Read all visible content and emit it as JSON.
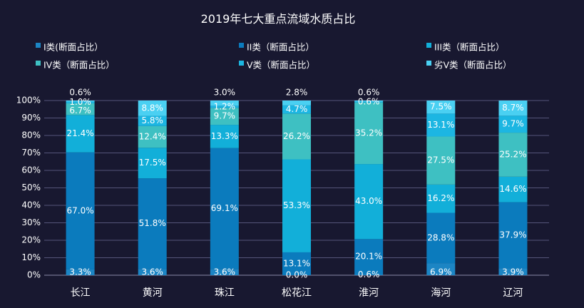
{
  "chart_data": {
    "type": "bar",
    "stacked": true,
    "title": "2019年七大重点流域水质占比",
    "xlabel": "",
    "ylabel": "",
    "ylim": [
      0,
      100
    ],
    "y_ticks": [
      "0%",
      "10%",
      "20%",
      "30%",
      "40%",
      "50%",
      "60%",
      "70%",
      "80%",
      "90%",
      "100%"
    ],
    "legend_position": "top",
    "categories": [
      "长江",
      "黄河",
      "珠江",
      "松花江",
      "淮河",
      "海河",
      "辽河"
    ],
    "series": [
      {
        "name": "I类(断面占比）",
        "color": "#1c85c4",
        "values": [
          3.3,
          3.6,
          3.6,
          0.0,
          0.6,
          6.9,
          3.9
        ],
        "labels": [
          "3.3%",
          "3.6%",
          "3.6%",
          "0.0%",
          "0.6%",
          "6.9%",
          "3.9%"
        ]
      },
      {
        "name": "II类（断面占比）",
        "color": "#0b7bbd",
        "values": [
          67.0,
          51.8,
          69.1,
          13.1,
          20.1,
          28.8,
          37.9
        ],
        "labels": [
          "67.0%",
          "51.8%",
          "69.1%",
          "13.1%",
          "20.1%",
          "28.8%",
          "37.9%"
        ]
      },
      {
        "name": "III类（断面占比）",
        "color": "#12afd9",
        "values": [
          21.4,
          17.5,
          13.3,
          53.3,
          43.0,
          16.2,
          14.6
        ],
        "labels": [
          "21.4%",
          "17.5%",
          "13.3%",
          "53.3%",
          "43.0%",
          "16.2%",
          "14.6%"
        ]
      },
      {
        "name": "IV类（断面占比）",
        "color": "#3ec0c2",
        "values": [
          6.7,
          12.4,
          9.7,
          26.2,
          35.2,
          27.5,
          25.2
        ],
        "labels": [
          "6.7%",
          "12.4%",
          "9.7%",
          "26.2%",
          "35.2%",
          "27.5%",
          "25.2%"
        ]
      },
      {
        "name": "V类（断面占比）",
        "color": "#1cb6e2",
        "values": [
          1.0,
          5.8,
          1.2,
          4.7,
          0.6,
          13.1,
          9.7
        ],
        "labels": [
          "1.0%",
          "5.8%",
          "1.2%",
          "4.7%",
          "0.6%",
          "13.1%",
          "9.7%"
        ]
      },
      {
        "name": "劣V类（断面占比）",
        "color": "#4ad0f2",
        "values": [
          0.6,
          8.8,
          3.0,
          2.8,
          0.6,
          7.5,
          8.7
        ],
        "labels": [
          "0.6%",
          "8.8%",
          "3.0%",
          "2.8%",
          "0.6%",
          "7.5%",
          "8.7%"
        ]
      }
    ]
  }
}
